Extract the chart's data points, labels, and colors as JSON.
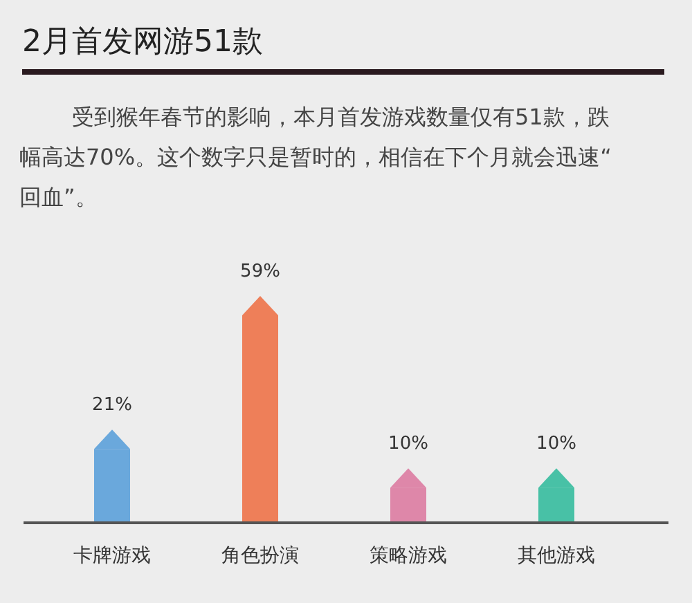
{
  "chart_data": {
    "type": "bar",
    "title": "2月首发网游51款",
    "subtitle": "受到猴年春节的影响，本月首发游戏数量仅有51款，跌幅高达70%。这个数字只是暂时的，相信在下个月就会迅速“回血”。",
    "categories": [
      "卡牌游戏",
      "角色扮演",
      "策略游戏",
      "其他游戏"
    ],
    "values": [
      21,
      59,
      10,
      10
    ],
    "colors": [
      "#6aa8dc",
      "#ee7f59",
      "#de87a9",
      "#48c1a6"
    ],
    "value_labels": [
      "21%",
      "59%",
      "10%",
      "10%"
    ]
  }
}
